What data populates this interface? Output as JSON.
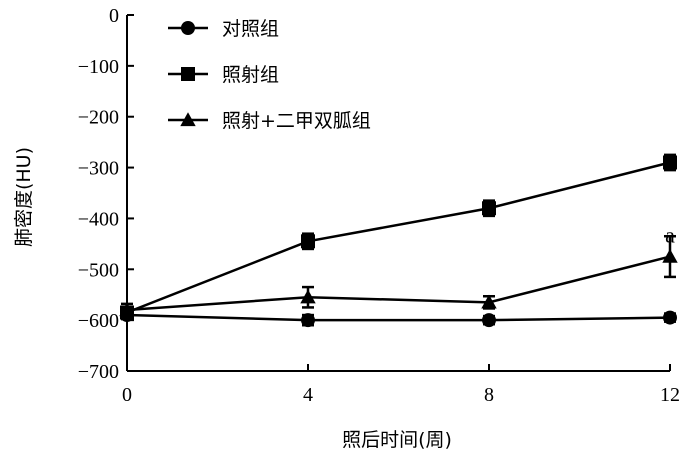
{
  "chart_data": {
    "type": "line",
    "xlabel": "照后时间(周)",
    "ylabel": "肺密度(HU)",
    "x": [
      0,
      4,
      8,
      12
    ],
    "xticks": [
      "0",
      "4",
      "8",
      "12"
    ],
    "xlim": [
      0,
      12
    ],
    "ylim": [
      -700,
      0
    ],
    "yticks": [
      "0",
      "−100",
      "−200",
      "−300",
      "−400",
      "−500",
      "−600",
      "−700"
    ],
    "ytick_values": [
      0,
      -100,
      -200,
      -300,
      -400,
      -500,
      -600,
      -700
    ],
    "grid": false,
    "legend_position": "top-left",
    "series": [
      {
        "name": "对照组",
        "marker": "circle",
        "values": [
          -590,
          -600,
          -600,
          -595
        ],
        "errors": [
          8,
          10,
          8,
          8
        ]
      },
      {
        "name": "照射组",
        "marker": "square",
        "values": [
          -585,
          -445,
          -380,
          -290
        ],
        "errors": [
          10,
          15,
          15,
          15
        ]
      },
      {
        "name": "照射+二甲双胍组",
        "marker": "triangle",
        "values": [
          -580,
          -555,
          -565,
          -475
        ],
        "errors": [
          12,
          20,
          12,
          40
        ]
      }
    ],
    "annotations": [
      {
        "text": "a",
        "x": 12,
        "y": -400
      }
    ]
  }
}
